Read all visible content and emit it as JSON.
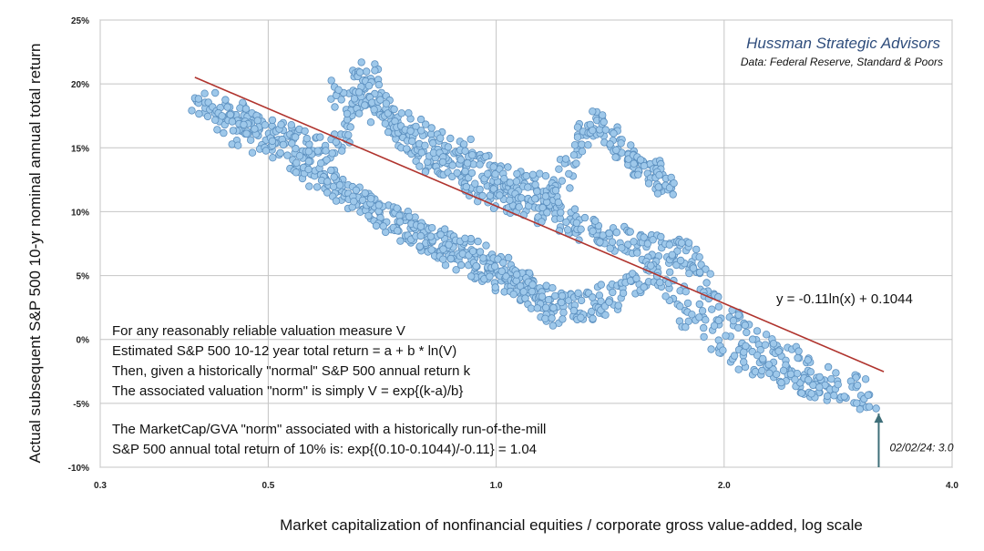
{
  "chart_data": {
    "type": "scatter",
    "xscale": "log",
    "xlim": [
      0.3,
      4.0
    ],
    "ylim": [
      -0.1,
      0.25
    ],
    "grid": true,
    "xticks": [
      {
        "value": 0.3,
        "label": "0.3"
      },
      {
        "value": 0.5,
        "label": "0.5"
      },
      {
        "value": 1.0,
        "label": "1.0"
      },
      {
        "value": 2.0,
        "label": "2.0"
      },
      {
        "value": 4.0,
        "label": "4.0"
      }
    ],
    "yticks": [
      {
        "value": 0.25,
        "label": "25%"
      },
      {
        "value": 0.2,
        "label": "20%"
      },
      {
        "value": 0.15,
        "label": "15%"
      },
      {
        "value": 0.1,
        "label": "10%"
      },
      {
        "value": 0.05,
        "label": "5%"
      },
      {
        "value": 0.0,
        "label": "0%"
      },
      {
        "value": -0.05,
        "label": "-5%"
      },
      {
        "value": -0.1,
        "label": "-10%"
      }
    ],
    "xlabel": "Market capitalization of nonfinancial equities / corporate gross value-added, log scale",
    "ylabel": "Actual subsequent S&P 500 10-yr nominal annual total return",
    "brand": "Hussman Strategic Advisors",
    "source": "Data: Federal Reserve, Standard & Poors",
    "fit": {
      "a": 0.1044,
      "b": -0.11,
      "x_range": [
        0.4,
        3.25
      ],
      "color": "#b0342e",
      "label": "y = -0.11ln(x) + 0.1044"
    },
    "point_color": "#9ec8ea",
    "point_edge": "#5b8fbf",
    "annotation": {
      "label": "02/02/24: 3.0",
      "x": 3.2,
      "arrow_color": "#3f6f79"
    },
    "notes": [
      "For any reasonably reliable valuation measure V",
      "Estimated S&P 500 10-12 year total return = a + b * ln(V)",
      "Then, given a historically \"normal\" S&P 500 annual return k",
      "The associated valuation \"norm\" is simply V = exp{(k-a)/b}",
      "The MarketCap/GVA \"norm\" associated with a historically run-of-the-mill",
      "S&P 500 annual total return of 10% is: exp{(0.10-0.1044)/-0.11}  = 1.04"
    ],
    "series": [
      {
        "x": [
          0.4,
          0.42,
          0.44,
          0.46,
          0.48,
          0.5,
          0.52,
          0.55,
          0.58,
          0.61,
          0.64,
          0.66,
          0.68,
          0.7,
          0.73,
          0.76,
          0.8,
          0.84,
          0.88,
          0.92,
          0.96,
          1.0,
          1.05,
          1.1,
          1.16,
          1.22,
          1.28,
          1.35,
          1.42,
          1.5,
          1.58,
          1.66,
          1.75,
          1.8,
          1.9,
          2.0,
          2.15,
          2.3,
          2.45,
          2.6,
          2.8,
          3.0,
          3.15
        ],
        "y": [
          0.188,
          0.182,
          0.178,
          0.175,
          0.17,
          0.168,
          0.16,
          0.155,
          0.148,
          0.152,
          0.165,
          0.21,
          0.205,
          0.19,
          0.17,
          0.155,
          0.145,
          0.14,
          0.132,
          0.125,
          0.118,
          0.112,
          0.108,
          0.105,
          0.1,
          0.095,
          0.09,
          0.085,
          0.08,
          0.075,
          0.072,
          0.07,
          0.068,
          0.065,
          0.04,
          0.02,
          0.005,
          -0.01,
          -0.015,
          -0.025,
          -0.035,
          -0.04,
          -0.05
        ]
      },
      {
        "x": [
          0.43,
          0.47,
          0.51,
          0.55,
          0.59,
          0.63,
          0.67,
          0.71,
          0.75,
          0.79,
          0.83,
          0.87,
          0.91,
          0.95,
          1.0,
          1.05,
          1.1,
          1.15,
          1.2,
          1.26,
          1.32,
          1.38,
          1.45,
          1.52,
          1.6,
          1.7,
          1.8,
          1.95,
          2.1,
          2.25,
          2.4,
          2.55,
          2.7
        ],
        "y": [
          0.172,
          0.16,
          0.15,
          0.14,
          0.128,
          0.118,
          0.108,
          0.098,
          0.09,
          0.082,
          0.075,
          0.068,
          0.062,
          0.055,
          0.05,
          0.045,
          0.04,
          0.035,
          0.03,
          0.028,
          0.025,
          0.03,
          0.035,
          0.045,
          0.05,
          0.04,
          0.02,
          0.0,
          -0.015,
          -0.02,
          -0.03,
          -0.035,
          -0.04
        ]
      },
      {
        "x": [
          0.6,
          0.65,
          0.7,
          0.75,
          0.8,
          0.85,
          0.9,
          0.95,
          1.0,
          1.05,
          1.1,
          1.15,
          1.2,
          1.25,
          1.3,
          1.35,
          1.4,
          1.45,
          1.5,
          1.55,
          1.6,
          1.65,
          1.7
        ],
        "y": [
          0.195,
          0.185,
          0.18,
          0.17,
          0.16,
          0.15,
          0.148,
          0.14,
          0.13,
          0.125,
          0.12,
          0.118,
          0.115,
          0.14,
          0.16,
          0.17,
          0.165,
          0.15,
          0.14,
          0.135,
          0.13,
          0.125,
          0.122
        ]
      },
      {
        "x": [
          0.55,
          0.6,
          0.65,
          0.7,
          0.75,
          0.8,
          0.85,
          0.9,
          0.95,
          1.0,
          1.05,
          1.1,
          1.15,
          1.2
        ],
        "y": [
          0.13,
          0.125,
          0.11,
          0.1,
          0.09,
          0.08,
          0.075,
          0.07,
          0.065,
          0.06,
          0.05,
          0.04,
          0.03,
          0.015
        ]
      }
    ]
  }
}
